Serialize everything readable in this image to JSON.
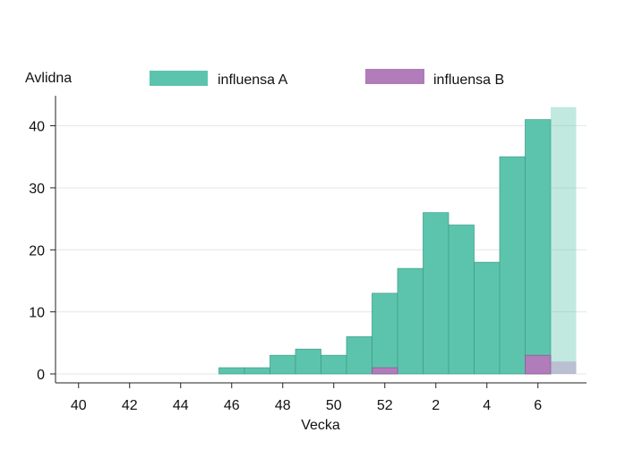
{
  "chart_data": {
    "type": "bar",
    "stacking": "overlapping",
    "ylabel": "Avlidna",
    "xlabel": "Vecka",
    "ylim": [
      0,
      44
    ],
    "yticks": [
      0,
      10,
      20,
      30,
      40
    ],
    "xticks": [
      "40",
      "42",
      "44",
      "46",
      "48",
      "50",
      "52",
      "2",
      "4",
      "6"
    ],
    "weeks": [
      "40",
      "41",
      "42",
      "43",
      "44",
      "45",
      "46",
      "47",
      "48",
      "49",
      "50",
      "51",
      "52",
      "1",
      "2",
      "3",
      "4",
      "5",
      "6",
      "7"
    ],
    "series": [
      {
        "name": "influensa A",
        "color": "#5cc4ad",
        "values": [
          0,
          0,
          0,
          0,
          0,
          0,
          1,
          1,
          3,
          4,
          3,
          6,
          13,
          17,
          26,
          24,
          18,
          35,
          41,
          43
        ]
      },
      {
        "name": "influensa B",
        "color": "#b07cba",
        "values": [
          0,
          0,
          0,
          0,
          0,
          0,
          0,
          0,
          0,
          0,
          0,
          0,
          1,
          0,
          0,
          0,
          0,
          0,
          3,
          2
        ]
      }
    ],
    "preliminary_weeks": [
      "7"
    ],
    "grid": "horizontal",
    "legend_position": "top"
  }
}
